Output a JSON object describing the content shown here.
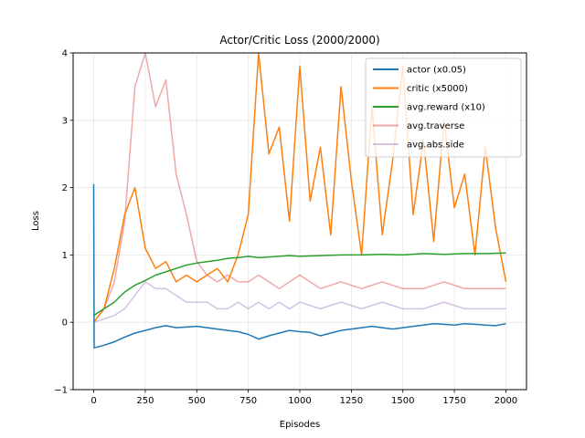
{
  "chart_data": {
    "type": "line",
    "title": "Actor/Critic Loss (2000/2000)",
    "xlabel": "Episodes",
    "ylabel": "Loss",
    "xlim": [
      -100,
      2100
    ],
    "ylim": [
      -1,
      4
    ],
    "xticks": [
      0,
      250,
      500,
      750,
      1000,
      1250,
      1500,
      1750,
      2000
    ],
    "yticks": [
      -1,
      0,
      1,
      2,
      3,
      4
    ],
    "grid": true,
    "legend": "top-right",
    "series": [
      {
        "name": "actor (x0.05)",
        "color": "#1f77b4",
        "alpha": 1.0,
        "x": [
          0,
          2,
          50,
          100,
          150,
          200,
          250,
          300,
          350,
          400,
          450,
          500,
          550,
          600,
          650,
          700,
          750,
          800,
          850,
          900,
          950,
          1000,
          1050,
          1100,
          1150,
          1200,
          1250,
          1300,
          1350,
          1400,
          1450,
          1500,
          1550,
          1600,
          1650,
          1700,
          1750,
          1800,
          1850,
          1900,
          1950,
          2000
        ],
        "values": [
          2.05,
          -0.38,
          -0.34,
          -0.29,
          -0.22,
          -0.16,
          -0.12,
          -0.08,
          -0.05,
          -0.08,
          -0.07,
          -0.06,
          -0.08,
          -0.1,
          -0.12,
          -0.14,
          -0.18,
          -0.25,
          -0.2,
          -0.16,
          -0.12,
          -0.14,
          -0.15,
          -0.2,
          -0.16,
          -0.12,
          -0.1,
          -0.08,
          -0.06,
          -0.08,
          -0.1,
          -0.08,
          -0.06,
          -0.04,
          -0.02,
          -0.03,
          -0.04,
          -0.02,
          -0.03,
          -0.04,
          -0.05,
          -0.02
        ]
      },
      {
        "name": "critic (x5000)",
        "color": "#ff7f0e",
        "alpha": 1.0,
        "x": [
          0,
          50,
          100,
          150,
          200,
          250,
          300,
          350,
          400,
          450,
          500,
          550,
          600,
          650,
          700,
          750,
          800,
          850,
          900,
          950,
          1000,
          1050,
          1100,
          1150,
          1200,
          1250,
          1300,
          1350,
          1400,
          1450,
          1500,
          1550,
          1600,
          1650,
          1700,
          1750,
          1800,
          1850,
          1900,
          1950,
          2000
        ],
        "values": [
          0.0,
          0.2,
          0.8,
          1.6,
          2.0,
          1.1,
          0.8,
          0.9,
          0.6,
          0.7,
          0.6,
          0.7,
          0.8,
          0.6,
          1.0,
          1.6,
          4.0,
          2.5,
          2.9,
          1.5,
          3.8,
          1.8,
          2.6,
          1.3,
          3.5,
          2.1,
          1.0,
          3.2,
          1.3,
          2.4,
          3.8,
          1.6,
          2.7,
          1.2,
          3.0,
          1.7,
          2.2,
          1.0,
          2.6,
          1.4,
          0.6
        ]
      },
      {
        "name": "avg.reward (x10)",
        "color": "#2ca02c",
        "alpha": 1.0,
        "x": [
          0,
          50,
          100,
          150,
          200,
          250,
          300,
          350,
          400,
          450,
          500,
          550,
          600,
          650,
          700,
          750,
          800,
          850,
          900,
          950,
          1000,
          1100,
          1200,
          1300,
          1400,
          1500,
          1600,
          1700,
          1800,
          1900,
          2000
        ],
        "values": [
          0.1,
          0.2,
          0.3,
          0.45,
          0.55,
          0.62,
          0.7,
          0.75,
          0.8,
          0.85,
          0.88,
          0.9,
          0.92,
          0.95,
          0.96,
          0.98,
          0.96,
          0.97,
          0.98,
          0.99,
          0.98,
          0.99,
          1.0,
          1.0,
          1.01,
          1.0,
          1.02,
          1.01,
          1.02,
          1.02,
          1.03
        ]
      },
      {
        "name": "avg.traverse",
        "color": "#d62728",
        "alpha": 0.4,
        "x": [
          0,
          50,
          100,
          150,
          200,
          250,
          300,
          350,
          400,
          450,
          500,
          550,
          600,
          650,
          700,
          750,
          800,
          850,
          900,
          950,
          1000,
          1100,
          1200,
          1300,
          1400,
          1500,
          1600,
          1700,
          1800,
          1900,
          2000
        ],
        "values": [
          0.0,
          0.2,
          0.6,
          1.5,
          3.5,
          4.0,
          3.2,
          3.6,
          2.2,
          1.6,
          0.9,
          0.7,
          0.6,
          0.7,
          0.6,
          0.6,
          0.7,
          0.6,
          0.5,
          0.6,
          0.7,
          0.5,
          0.6,
          0.5,
          0.6,
          0.5,
          0.5,
          0.6,
          0.5,
          0.5,
          0.5
        ]
      },
      {
        "name": "avg.abs.side",
        "color": "#9467bd",
        "alpha": 0.4,
        "x": [
          0,
          50,
          100,
          150,
          200,
          250,
          300,
          350,
          400,
          450,
          500,
          550,
          600,
          650,
          700,
          750,
          800,
          850,
          900,
          950,
          1000,
          1100,
          1200,
          1300,
          1400,
          1500,
          1600,
          1700,
          1800,
          1900,
          2000
        ],
        "values": [
          0.0,
          0.05,
          0.1,
          0.2,
          0.4,
          0.6,
          0.5,
          0.5,
          0.4,
          0.3,
          0.3,
          0.3,
          0.2,
          0.2,
          0.3,
          0.2,
          0.3,
          0.2,
          0.3,
          0.2,
          0.3,
          0.2,
          0.3,
          0.2,
          0.3,
          0.2,
          0.2,
          0.3,
          0.2,
          0.2,
          0.2
        ]
      }
    ]
  }
}
